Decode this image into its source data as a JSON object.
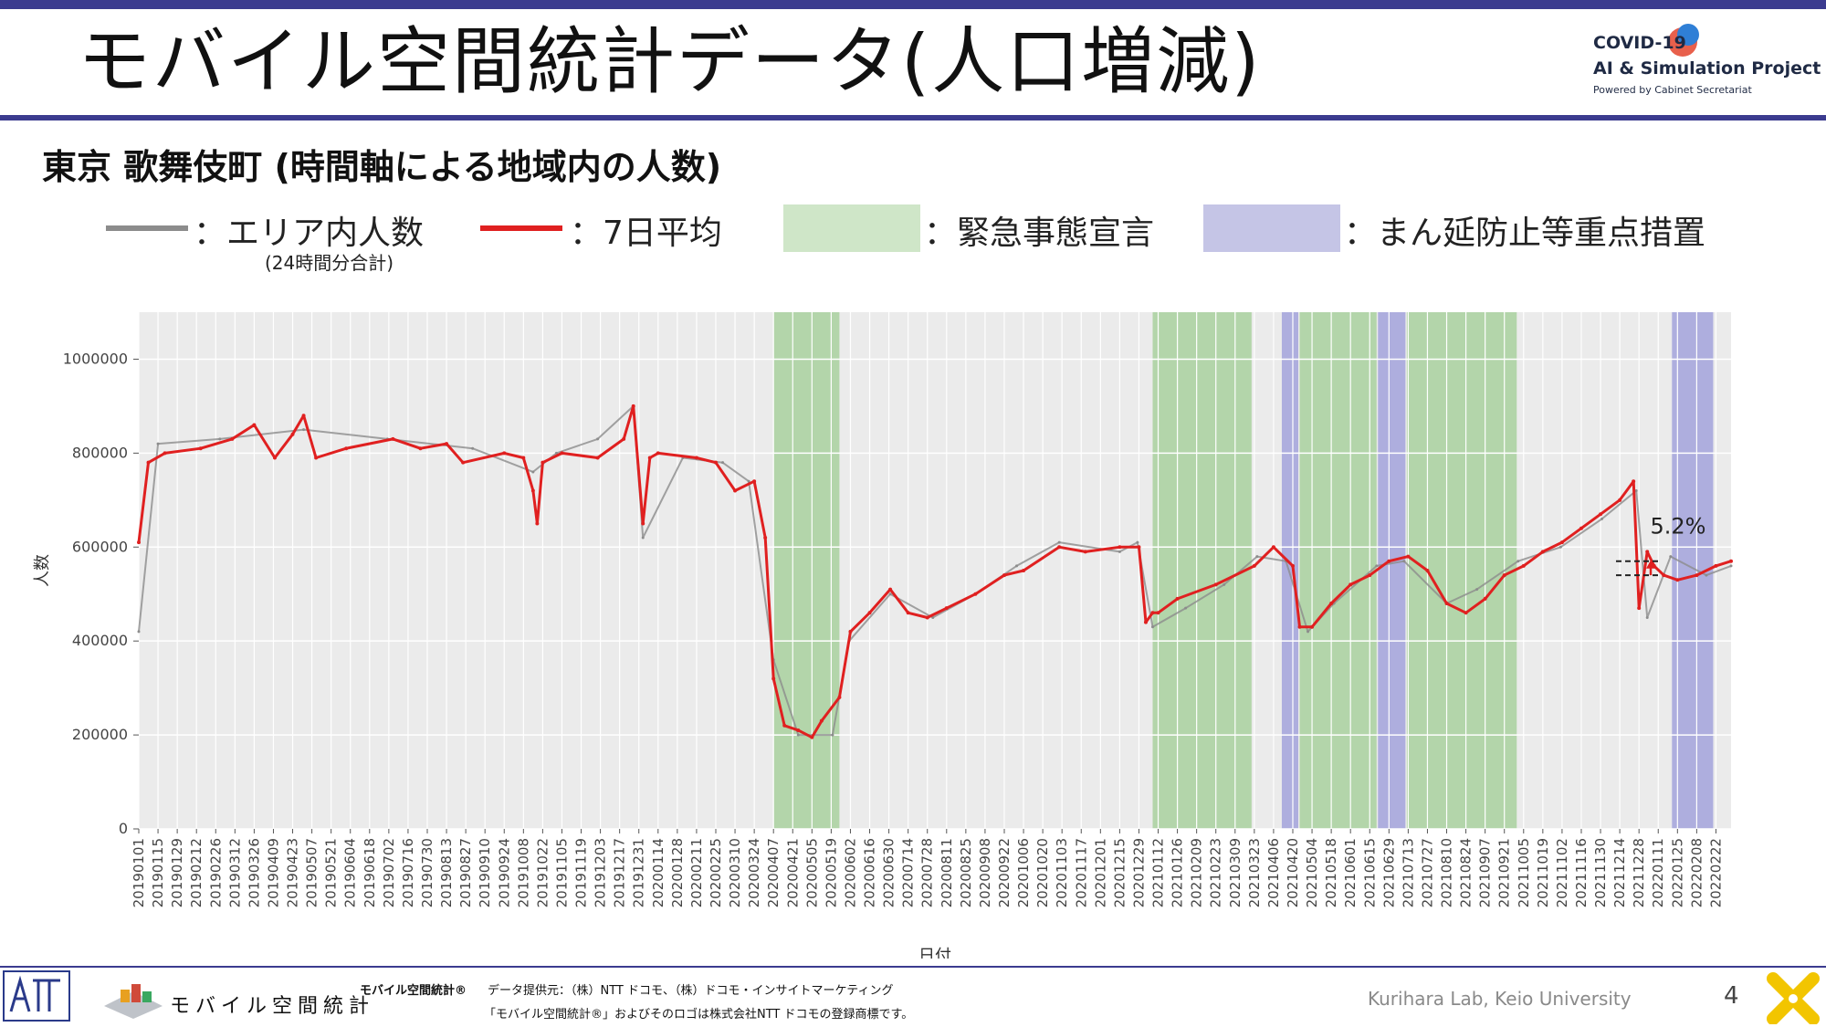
{
  "header": {
    "title": "モバイル空間統計データ(人口増減)",
    "logo": {
      "line1": "COVID-19",
      "line2": "AI & Simulation Project",
      "line3": "Powered by Cabinet Secretariat",
      "colors": {
        "red": "#e8604c",
        "blue": "#2f7fd6",
        "text": "#1f2a44"
      }
    }
  },
  "subtitle": "東京 歌舞伎町 (時間軸による地域内の人数)",
  "legend": {
    "area_count": "：エリア内人数",
    "area_count_note": "(24時間分合計)",
    "avg7": "：7日平均",
    "emergency": "：緊急事態宣言",
    "priority": "：まん延防止等重点措置",
    "colors": {
      "area_count": "#8c8c8c",
      "avg7": "#e02020",
      "emergency": "#cfe6c8",
      "priority": "#c5c5e6"
    }
  },
  "chart_data": {
    "type": "line",
    "xlabel": "日付",
    "ylabel": "人数",
    "ylim": [
      0,
      1100000
    ],
    "x_range": [
      "2019-01-01",
      "2022-03-05"
    ],
    "yticks": [
      0,
      200000,
      400000,
      600000,
      800000,
      1000000
    ],
    "ytick_labels": [
      "0",
      "200000",
      "400000",
      "600000",
      "800000",
      "1000000"
    ],
    "xtick_labels": [
      "20190101",
      "20190115",
      "20190129",
      "20190212",
      "20190226",
      "20190312",
      "20190326",
      "20190409",
      "20190423",
      "20190507",
      "20190521",
      "20190604",
      "20190618",
      "20190702",
      "20190716",
      "20190730",
      "20190813",
      "20190827",
      "20190910",
      "20190924",
      "20191008",
      "20191022",
      "20191105",
      "20191119",
      "20191203",
      "20191217",
      "20191231",
      "20200114",
      "20200128",
      "20200211",
      "20200225",
      "20200310",
      "20200324",
      "20200407",
      "20200421",
      "20200505",
      "20200519",
      "20200602",
      "20200616",
      "20200630",
      "20200714",
      "20200728",
      "20200811",
      "20200825",
      "20200908",
      "20200922",
      "20201006",
      "20201020",
      "20201103",
      "20201117",
      "20201201",
      "20201215",
      "20201229",
      "20210112",
      "20210126",
      "20210209",
      "20210223",
      "20210309",
      "20210323",
      "20210406",
      "20210420",
      "20210504",
      "20210518",
      "20210601",
      "20210615",
      "20210629",
      "20210713",
      "20210727",
      "20210810",
      "20210824",
      "20210907",
      "20210921",
      "20211005",
      "20211019",
      "20211102",
      "20211116",
      "20211130",
      "20211214",
      "20211228",
      "20220111",
      "20220125",
      "20220208",
      "20220222"
    ],
    "shaded_periods": [
      {
        "type": "emergency",
        "start": "2020-04-07",
        "end": "2020-05-25"
      },
      {
        "type": "emergency",
        "start": "2021-01-08",
        "end": "2021-03-21"
      },
      {
        "type": "priority",
        "start": "2021-04-12",
        "end": "2021-04-24"
      },
      {
        "type": "emergency",
        "start": "2021-04-25",
        "end": "2021-06-20"
      },
      {
        "type": "priority",
        "start": "2021-06-21",
        "end": "2021-07-11"
      },
      {
        "type": "emergency",
        "start": "2021-07-12",
        "end": "2021-09-30"
      },
      {
        "type": "priority",
        "start": "2022-01-21",
        "end": "2022-02-20"
      }
    ],
    "series": [
      {
        "name": "エリア内人数",
        "kind": "daily",
        "x": [
          "2019-01-01",
          "2019-01-15",
          "2019-03-01",
          "2019-05-01",
          "2019-07-01",
          "2019-09-01",
          "2019-10-15",
          "2019-11-01",
          "2019-12-01",
          "2019-12-27",
          "2020-01-03",
          "2020-02-01",
          "2020-03-01",
          "2020-03-20",
          "2020-04-07",
          "2020-04-25",
          "2020-05-20",
          "2020-06-01",
          "2020-07-01",
          "2020-08-01",
          "2020-09-01",
          "2020-10-01",
          "2020-11-01",
          "2020-12-15",
          "2020-12-28",
          "2021-01-08",
          "2021-02-01",
          "2021-03-01",
          "2021-03-25",
          "2021-04-15",
          "2021-05-01",
          "2021-05-20",
          "2021-06-20",
          "2021-07-10",
          "2021-08-10",
          "2021-09-01",
          "2021-10-01",
          "2021-11-01",
          "2021-12-01",
          "2021-12-26",
          "2022-01-03",
          "2022-01-20",
          "2022-02-15",
          "2022-03-05"
        ],
        "y": [
          420000,
          820000,
          830000,
          850000,
          830000,
          810000,
          760000,
          800000,
          830000,
          900000,
          620000,
          790000,
          780000,
          740000,
          360000,
          200000,
          200000,
          400000,
          500000,
          450000,
          500000,
          560000,
          610000,
          590000,
          610000,
          430000,
          470000,
          520000,
          580000,
          570000,
          420000,
          480000,
          560000,
          570000,
          480000,
          510000,
          570000,
          600000,
          660000,
          720000,
          450000,
          580000,
          540000,
          560000
        ]
      },
      {
        "name": "7日平均",
        "kind": "avg",
        "x": [
          "2019-01-01",
          "2019-01-08",
          "2019-01-20",
          "2019-02-15",
          "2019-03-10",
          "2019-03-26",
          "2019-04-10",
          "2019-04-23",
          "2019-05-01",
          "2019-05-10",
          "2019-06-01",
          "2019-07-05",
          "2019-07-25",
          "2019-08-13",
          "2019-08-25",
          "2019-09-24",
          "2019-10-08",
          "2019-10-15",
          "2019-10-18",
          "2019-10-22",
          "2019-11-05",
          "2019-12-01",
          "2019-12-20",
          "2019-12-27",
          "2020-01-03",
          "2020-01-08",
          "2020-01-14",
          "2020-02-11",
          "2020-02-25",
          "2020-03-10",
          "2020-03-24",
          "2020-04-01",
          "2020-04-07",
          "2020-04-15",
          "2020-04-25",
          "2020-05-05",
          "2020-05-12",
          "2020-05-25",
          "2020-06-02",
          "2020-06-16",
          "2020-07-01",
          "2020-07-14",
          "2020-07-28",
          "2020-08-11",
          "2020-09-01",
          "2020-09-22",
          "2020-10-06",
          "2020-11-01",
          "2020-11-20",
          "2020-12-15",
          "2020-12-29",
          "2021-01-03",
          "2021-01-08",
          "2021-01-12",
          "2021-01-26",
          "2021-02-23",
          "2021-03-23",
          "2021-04-06",
          "2021-04-20",
          "2021-04-25",
          "2021-05-04",
          "2021-05-18",
          "2021-06-01",
          "2021-06-15",
          "2021-06-29",
          "2021-07-13",
          "2021-07-27",
          "2021-08-10",
          "2021-08-24",
          "2021-09-07",
          "2021-09-21",
          "2021-10-05",
          "2021-10-19",
          "2021-11-02",
          "2021-11-16",
          "2021-11-30",
          "2021-12-14",
          "2021-12-24",
          "2021-12-28",
          "2022-01-03",
          "2022-01-08",
          "2022-01-15",
          "2022-01-25",
          "2022-02-08",
          "2022-02-22",
          "2022-03-05"
        ],
        "y": [
          610000,
          780000,
          800000,
          810000,
          830000,
          860000,
          790000,
          840000,
          880000,
          790000,
          810000,
          830000,
          810000,
          820000,
          780000,
          800000,
          790000,
          720000,
          650000,
          780000,
          800000,
          790000,
          830000,
          900000,
          650000,
          790000,
          800000,
          790000,
          780000,
          720000,
          740000,
          620000,
          320000,
          220000,
          210000,
          195000,
          230000,
          280000,
          420000,
          460000,
          510000,
          460000,
          450000,
          470000,
          500000,
          540000,
          550000,
          600000,
          590000,
          600000,
          600000,
          440000,
          460000,
          460000,
          490000,
          520000,
          560000,
          600000,
          560000,
          430000,
          430000,
          480000,
          520000,
          540000,
          570000,
          580000,
          550000,
          480000,
          460000,
          490000,
          540000,
          560000,
          590000,
          610000,
          640000,
          670000,
          700000,
          740000,
          470000,
          590000,
          560000,
          540000,
          530000,
          540000,
          560000,
          570000
        ]
      }
    ],
    "annotation": {
      "text": "5.2%",
      "lower": 540000,
      "upper": 570000
    }
  },
  "footer": {
    "brand_label": "モバイル空間統計®",
    "provider": "データ提供元：（株）NTT ドコモ、（株）ドコモ・インサイトマーケティング",
    "trademark": "「モバイル空間統計®」およびそのロゴは株式会社NTT ドコモの登録商標です。",
    "brand_logo_text": "モバイル空間統計",
    "credit": "Kurihara Lab, Keio University",
    "page_number": "4"
  }
}
